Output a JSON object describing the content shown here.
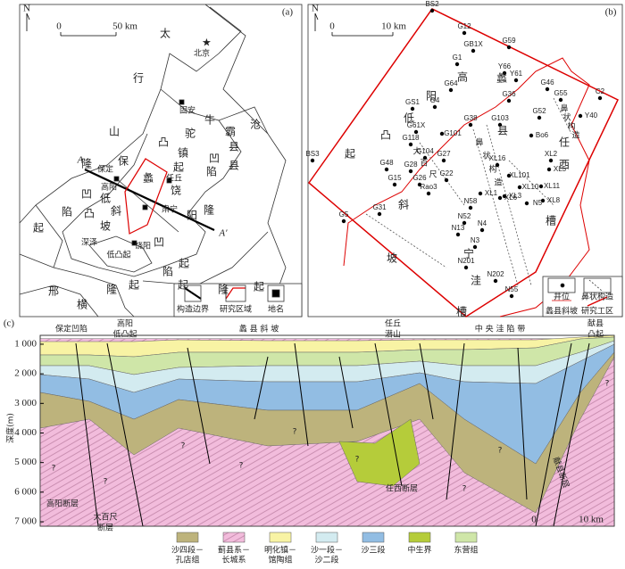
{
  "panel_a": {
    "label": "(a)",
    "north": "N",
    "scale": [
      "0",
      "50 km"
    ],
    "places": [
      "太",
      "行",
      "山",
      "北京",
      "固安",
      "牛",
      "驼",
      "镇",
      "凸",
      "起",
      "霸",
      "县",
      "凹",
      "陷",
      "沧",
      "县",
      "隆",
      "起",
      "隆",
      "凹",
      "陷",
      "起",
      "保定",
      "保",
      "高阳",
      "蠡",
      "任丘",
      "饶",
      "低",
      "凸",
      "斜",
      "坡",
      "肃宁",
      "阳",
      "深泽",
      "低凸起",
      "饶阳",
      "凹",
      "陷",
      "起",
      "隆",
      "起",
      "邢",
      "横",
      "隆",
      "起"
    ],
    "points": [
      "A",
      "A′"
    ],
    "legend": [
      "构造边界",
      "研究区域",
      "地名"
    ]
  },
  "panel_b": {
    "label": "(b)",
    "north": "N",
    "scale": [
      "0",
      "10 km"
    ],
    "wells": [
      "BS2",
      "G12",
      "GB1X",
      "G59",
      "G1",
      "Y66",
      "Y61",
      "G46",
      "G64",
      "G55",
      "C2",
      "G36",
      "Y40",
      "G52",
      "GS1",
      "G4",
      "G38",
      "G103",
      "G61X",
      "G101",
      "Bo6",
      "G118",
      "G104",
      "G27",
      "XL16",
      "XL2",
      "XL5",
      "BS3",
      "G48",
      "G28",
      "G26",
      "G15",
      "G22",
      "XL1",
      "XL101",
      "XL10",
      "XL11",
      "XL3",
      "XL6",
      "N5",
      "XL8",
      "Rao3",
      "G31",
      "G5",
      "N58",
      "N52",
      "N4",
      "N13",
      "N3",
      "N201",
      "N202",
      "N55"
    ],
    "regions": [
      "高",
      "阳",
      "低",
      "凸",
      "起",
      "蠡",
      "县",
      "任",
      "西",
      "槽",
      "斜",
      "坡",
      "宁",
      "洼",
      "槽",
      "大",
      "百",
      "尺",
      "鼻",
      "状",
      "构",
      "造",
      "鼻",
      "状",
      "构",
      "造"
    ],
    "legend": [
      "井位",
      "鼻状构造",
      "蠡县斜坡",
      "研究工区"
    ]
  },
  "panel_c": {
    "label": "(c)",
    "units": [
      {
        "lines": [
          "保定凹陷"
        ]
      },
      {
        "lines": [
          "高阳",
          "低凸起"
        ]
      },
      {
        "lines": [
          "蠡 县 斜 坡"
        ]
      },
      {
        "lines": [
          "任丘",
          "潜山"
        ]
      },
      {
        "lines": [
          "中 央 洼 陷 带"
        ]
      },
      {
        "lines": [
          "献县",
          "凸起"
        ]
      }
    ],
    "axis": {
      "title": "深度(m)",
      "ylim": [
        700,
        7150
      ],
      "ticks": [
        {
          "value": 1000,
          "label": "1 000"
        },
        {
          "value": 2000,
          "label": "2 000"
        },
        {
          "value": 3000,
          "label": "3 000"
        },
        {
          "value": 4000,
          "label": "4 000"
        },
        {
          "value": 5000,
          "label": "5 000"
        },
        {
          "value": 6000,
          "label": "6 000"
        },
        {
          "value": 7000,
          "label": "7 000"
        }
      ]
    },
    "faults": [
      {
        "lines": [
          "高阳断层"
        ]
      },
      {
        "lines": [
          "大百尺",
          "断层"
        ]
      },
      {
        "lines": [
          "任西断层"
        ]
      },
      {
        "lines": [
          "献县断层"
        ]
      }
    ],
    "question_marks": [
      "?",
      "?",
      "?",
      "?",
      "?",
      "?",
      "?",
      "?",
      "?"
    ],
    "scale": [
      "0",
      "10 km"
    ],
    "legend": [
      {
        "lines": [
          "沙四段－",
          "孔店组"
        ]
      },
      {
        "lines": [
          "蓟县系－",
          "长城系"
        ]
      },
      {
        "lines": [
          "明化镇－",
          "馆陶组"
        ]
      },
      {
        "lines": [
          "沙一段－",
          "沙二段"
        ]
      },
      {
        "lines": [
          "沙三段"
        ]
      },
      {
        "lines": [
          "中生界"
        ]
      },
      {
        "lines": [
          "东营组"
        ]
      }
    ]
  }
}
